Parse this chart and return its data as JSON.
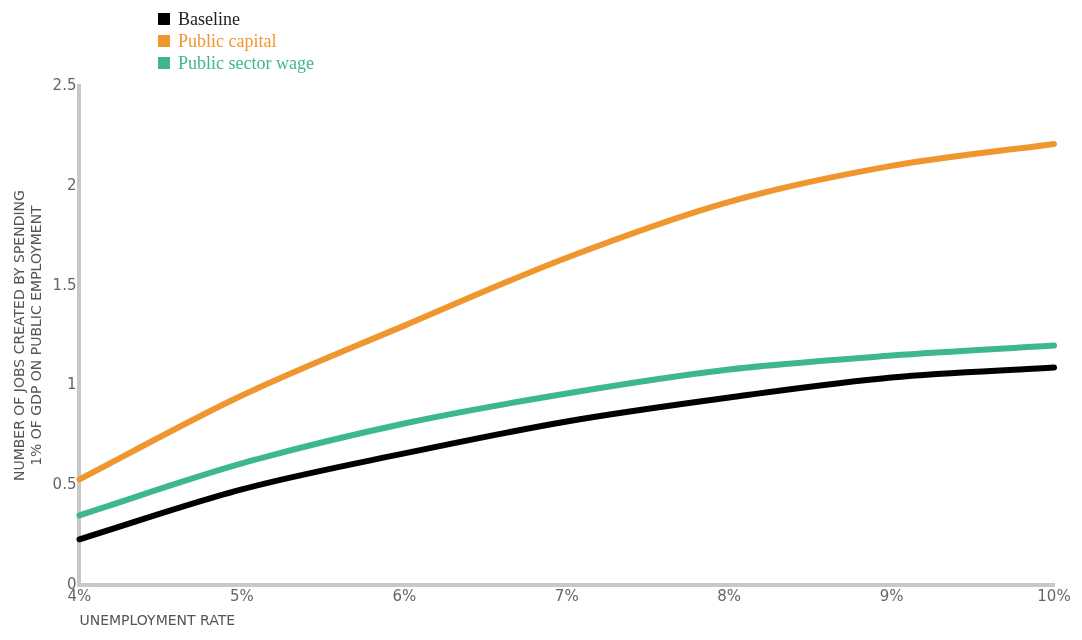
{
  "chart_data": {
    "type": "line",
    "xlabel": "UNEMPLOYMENT RATE",
    "ylabel": "NUMBER OF JOBS CREATED BY SPENDING 1% OF GDP ON PUBLIC EMPLOYMENT",
    "x": [
      4,
      5,
      6,
      7,
      8,
      9,
      10
    ],
    "series": [
      {
        "name": "Baseline",
        "color": "#000000",
        "values": [
          0.23,
          0.48,
          0.66,
          0.82,
          0.94,
          1.04,
          1.09
        ]
      },
      {
        "name": "Public capital",
        "color": "#f0962e",
        "values": [
          0.53,
          0.95,
          1.3,
          1.64,
          1.92,
          2.1,
          2.21
        ]
      },
      {
        "name": "Public sector wage",
        "color": "#3db88a",
        "values": [
          0.35,
          0.61,
          0.81,
          0.96,
          1.08,
          1.15,
          1.2
        ]
      }
    ],
    "xlim": [
      4,
      10
    ],
    "xticks": [
      {
        "value": 4,
        "label": "4%"
      },
      {
        "value": 5,
        "label": "5%"
      },
      {
        "value": 6,
        "label": "6%"
      },
      {
        "value": 7,
        "label": "7%"
      },
      {
        "value": 8,
        "label": "8%"
      },
      {
        "value": 9,
        "label": "9%"
      },
      {
        "value": 10,
        "label": "10%"
      }
    ],
    "ylim": [
      0,
      2.5
    ],
    "yticks": [
      0,
      0.5,
      1,
      1.5,
      2,
      2.5
    ],
    "grid": false,
    "legend": "top left",
    "marker": "none",
    "line_style": "solid"
  }
}
